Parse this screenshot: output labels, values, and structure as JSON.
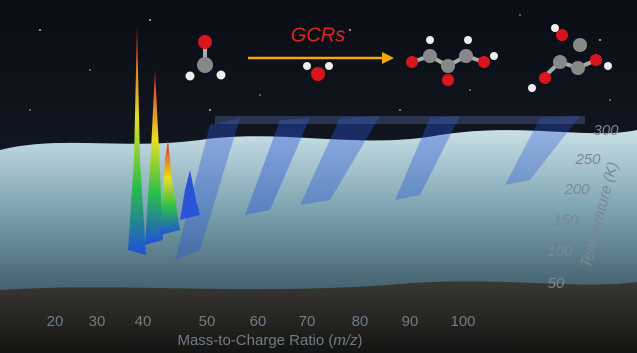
{
  "header": {
    "arrow_label": "GCRs"
  },
  "x_axis": {
    "label_prefix": "Mass-to-Charge Ratio (",
    "label_italic": "m/z",
    "label_suffix": ")",
    "ticks": [
      "20",
      "30",
      "40",
      "50",
      "60",
      "70",
      "80",
      "90",
      "100"
    ]
  },
  "temperature_axis": {
    "label": "Temperature (K)",
    "ticks": [
      "300",
      "250",
      "200",
      "150",
      "100",
      "50"
    ]
  }
}
